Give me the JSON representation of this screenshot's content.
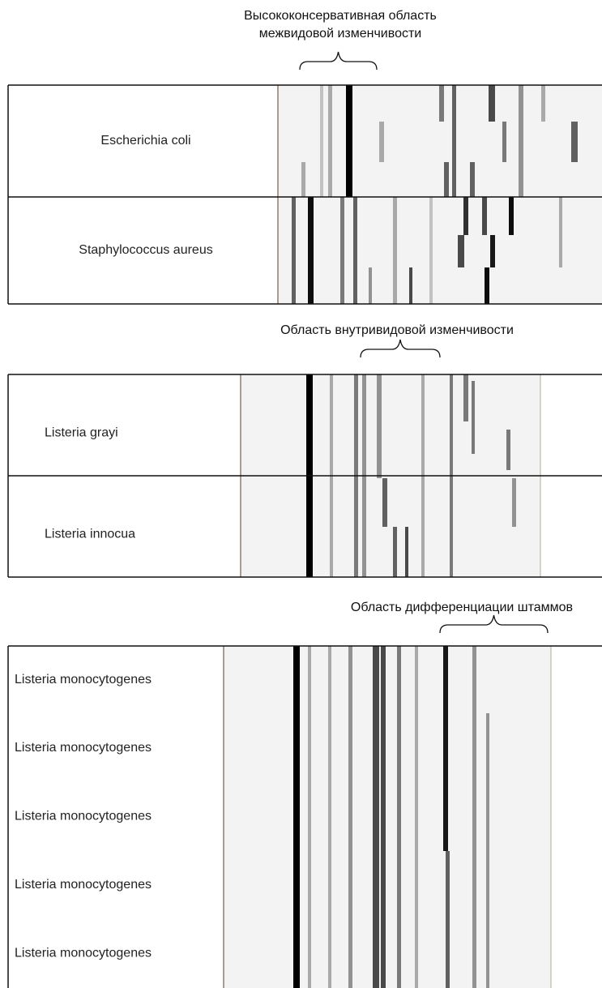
{
  "panels": [
    {
      "caption": [
        "Высококонсервативная область",
        "межвидовой изменчивости"
      ],
      "rows": [
        "Escherichia coli",
        "Staphylococcus aureus"
      ]
    },
    {
      "caption": [
        "Область внутривидовой изменчивости"
      ],
      "rows": [
        "Listeria grayi",
        "Listeria innocua"
      ]
    },
    {
      "caption": [
        "Область дифференциации штаммов"
      ],
      "rows": [
        "Listeria monocytogenes",
        "Listeria monocytogenes",
        "Listeria monocytogenes",
        "Listeria monocytogenes",
        "Listeria monocytogenes"
      ]
    }
  ]
}
